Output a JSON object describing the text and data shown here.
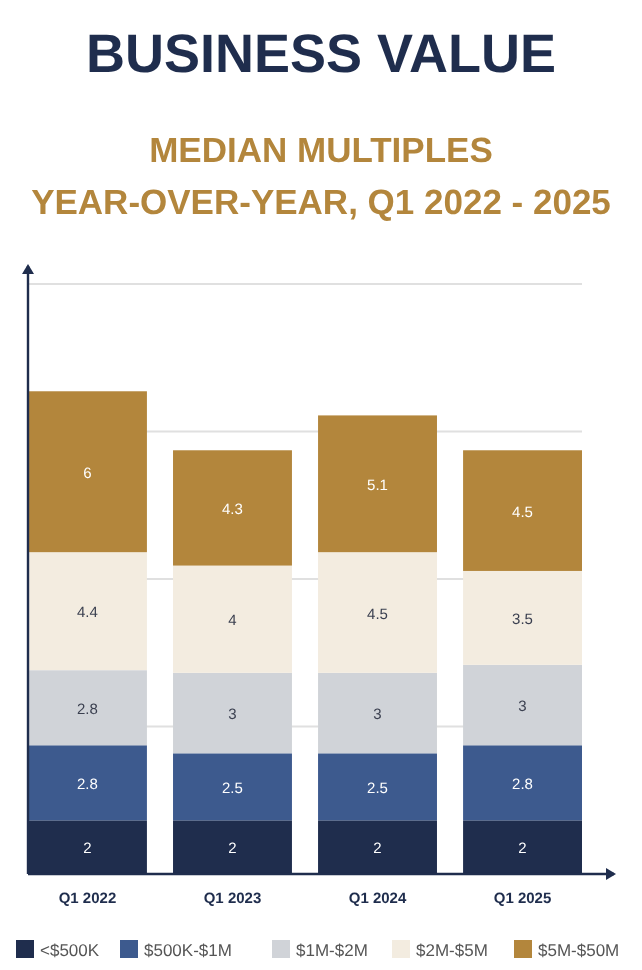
{
  "chart_data": {
    "type": "bar",
    "title": "BUSINESS VALUE",
    "subtitle": "MEDIAN MULTIPLES\nYEAR-OVER-YEAR, Q1 2022 - 2025",
    "categories": [
      "Q1 2022",
      "Q1 2023",
      "Q1 2024",
      "Q1 2025"
    ],
    "stacked": true,
    "data_labels": true,
    "grid": "y",
    "legend": "bottom",
    "tick_labels": "x",
    "ylim": [
      0,
      22
    ],
    "yticks": [
      {
        "value": 0,
        "label": null
      },
      {
        "value": 5.5,
        "label": null
      },
      {
        "value": 11,
        "label": null
      },
      {
        "value": 16.5,
        "label": null
      },
      {
        "value": 22,
        "label": null
      }
    ],
    "series": [
      {
        "name": "<$500K",
        "color": "#1f2d4d",
        "values": [
          2,
          2,
          2,
          2
        ]
      },
      {
        "name": "$500K-$1M",
        "color": "#3d5a8e",
        "values": [
          2.8,
          2.5,
          2.5,
          2.8
        ]
      },
      {
        "name": "$1M-$2M",
        "color": "#d0d3d8",
        "values": [
          2.8,
          3,
          3,
          3
        ]
      },
      {
        "name": "$2M-$5M",
        "color": "#f3ece0",
        "values": [
          4.4,
          4,
          4.5,
          3.5
        ]
      },
      {
        "name": "$5M-$50M",
        "color": "#b3863c",
        "values": [
          6,
          4.3,
          5.1,
          4.5
        ]
      }
    ]
  }
}
